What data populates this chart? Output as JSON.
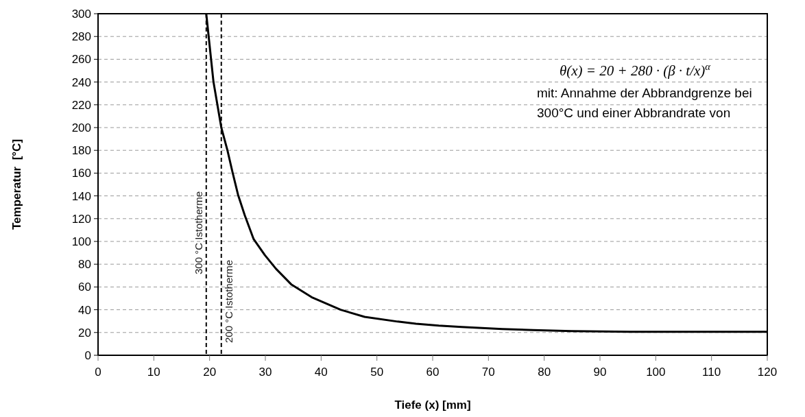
{
  "chart_data": {
    "type": "line",
    "xlabel": "Tiefe (x) [mm]",
    "ylabel": "Temperatur  [°C]",
    "xlim": [
      0,
      120
    ],
    "xticks": [
      0,
      10,
      20,
      30,
      40,
      50,
      60,
      70,
      80,
      90,
      100,
      110,
      120
    ],
    "ylim": [
      0,
      300
    ],
    "yticks": [
      0,
      20,
      40,
      60,
      80,
      100,
      120,
      140,
      160,
      180,
      200,
      220,
      240,
      260,
      280,
      300
    ],
    "grid": "y",
    "marker": "none",
    "line_style": "solid",
    "series": [
      {
        "color": "#000000",
        "x": [
          19.4,
          20.7,
          22.1,
          23.2,
          24.1,
          25.1,
          26.3,
          27.9,
          29.9,
          31.9,
          34.7,
          38.3,
          43.5,
          47.8,
          53.7,
          57.0,
          61.1,
          65.2,
          72.5,
          78.0,
          84.9,
          95.4,
          120
        ],
        "values": [
          300,
          240,
          200,
          180,
          161,
          141,
          123,
          102,
          88,
          76,
          62,
          51,
          40,
          33.7,
          29.6,
          27.7,
          26.0,
          24.8,
          23.1,
          22.2,
          21.2,
          20.7,
          20.7
        ]
      }
    ],
    "ref_lines": [
      {
        "axis": "x",
        "value": 19.4,
        "label": "300 °C Istotherme",
        "color": "#000000",
        "line_style": "dashed"
      },
      {
        "axis": "x",
        "value": 22.1,
        "label": "200 °C Istotherme",
        "color": "#000000",
        "line_style": "dashed"
      }
    ],
    "annotations": [
      "θ(x) = 20 + 280 · (β · t/x)$^{α}$",
      "mit: Annahme der Abbrandgrenze bei 300°C und einer Abbrandrate von"
    ]
  }
}
